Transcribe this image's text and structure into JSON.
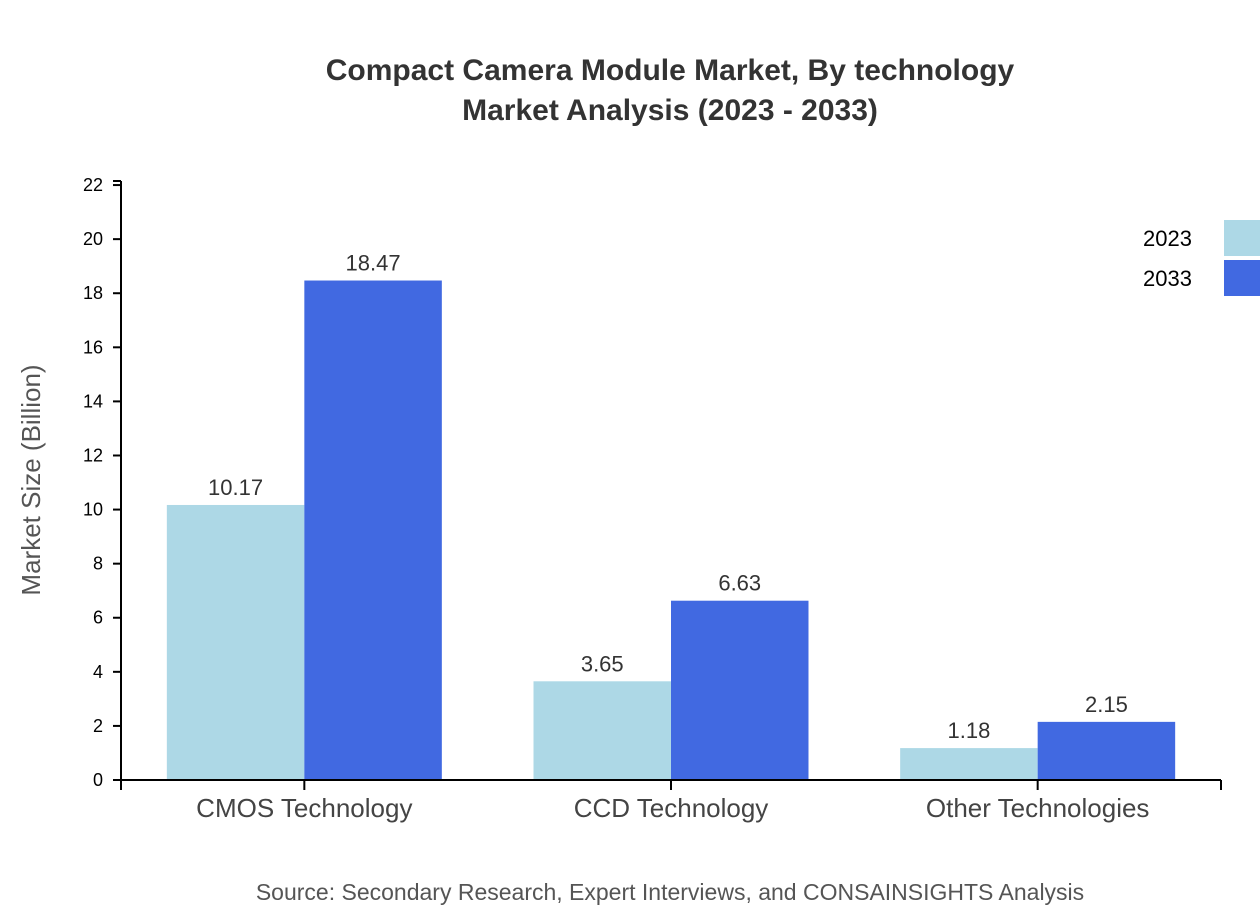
{
  "chart_data": {
    "type": "bar",
    "title": "Compact Camera Module Market, By technology",
    "subtitle": "Market Analysis (2023 - 2033)",
    "ylabel": "Market Size (Billion)",
    "xlabel": "",
    "ylim": [
      0,
      22.15
    ],
    "yticks": [
      0,
      2,
      4,
      6,
      8,
      10,
      12,
      14,
      16,
      18,
      20,
      22
    ],
    "categories": [
      "CMOS Technology",
      "CCD Technology",
      "Other Technologies"
    ],
    "series": [
      {
        "name": "2023",
        "values": [
          10.17,
          3.65,
          1.18
        ],
        "color": "#add8e6"
      },
      {
        "name": "2033",
        "values": [
          18.47,
          6.63,
          2.15
        ],
        "color": "#4169e1"
      }
    ],
    "legend": "top-right",
    "grid": false,
    "source": "Source: Secondary Research, Expert Interviews, and CONSAINSIGHTS Analysis"
  }
}
